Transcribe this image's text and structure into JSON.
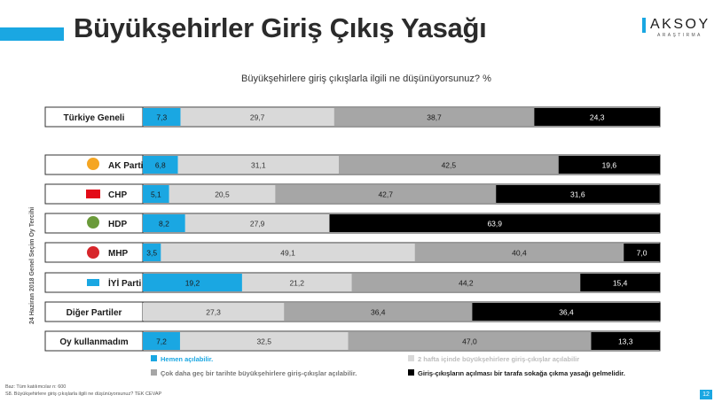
{
  "title": "Büyükşehirler Giriş Çıkış Yasağı",
  "logo": {
    "name": "AKSOY",
    "sub": "ARAŞTIRMA"
  },
  "side_label": "24 Haziran 2018 Genel Seçim Oy Tercihi",
  "footer": {
    "line1": "Baz: Tüm katılımcılar n: 600",
    "line2": "S8. Büyükşehirlere giriş çıkışlarla ilgili ne düşünüyorsunuz? TEK CEVAP"
  },
  "page_number": "12",
  "colors": {
    "accent": "#1aa7e2",
    "s1": "#1aa7e2",
    "s2": "#d9d9d9",
    "s3": "#a6a6a6",
    "s4": "#000000",
    "akp": "#f5a623",
    "chp": "#e30a17",
    "hdp": "#6a9a3a",
    "mhp": "#d7262b",
    "iyi": "#1aa7e2"
  },
  "chart_data": {
    "type": "bar",
    "orientation": "horizontal",
    "stacked": true,
    "title": "Büyükşehirlere giriş çıkışlarla ilgili ne düşünüyorsunuz? %",
    "xlim": [
      0,
      100
    ],
    "legend_position": "bottom",
    "grid": false,
    "categories": [
      "Türkiye Geneli",
      "AK Parti",
      "CHP",
      "HDP",
      "MHP",
      "İYİ Parti",
      "Diğer Partiler",
      "Oy kullanmadım"
    ],
    "category_icons": [
      "",
      "akp-logo-icon",
      "chp-logo-icon",
      "hdp-logo-icon",
      "mhp-logo-icon",
      "iyi-logo-icon",
      "",
      ""
    ],
    "series": [
      {
        "name": "Hemen açılabilir.",
        "values": [
          7.3,
          6.8,
          5.1,
          8.2,
          3.5,
          19.2,
          0,
          7.2
        ]
      },
      {
        "name": "2 hafta içinde büyükşehirlere giriş-çıkışlar açılabilir",
        "values": [
          29.7,
          31.1,
          20.5,
          27.9,
          49.1,
          21.2,
          27.3,
          32.5
        ]
      },
      {
        "name": "Çok daha geç bir tarihte büyükşehirlere giriş-çıkışlar açılabilir.",
        "values": [
          38.7,
          42.5,
          42.7,
          0,
          40.4,
          44.2,
          36.4,
          47.0
        ]
      },
      {
        "name": "Giriş-çıkışların açılması bir tarafa sokağa çıkma yasağı gelmelidir.",
        "values": [
          24.3,
          19.6,
          31.6,
          63.9,
          7.0,
          15.4,
          36.4,
          13.3
        ]
      }
    ]
  }
}
